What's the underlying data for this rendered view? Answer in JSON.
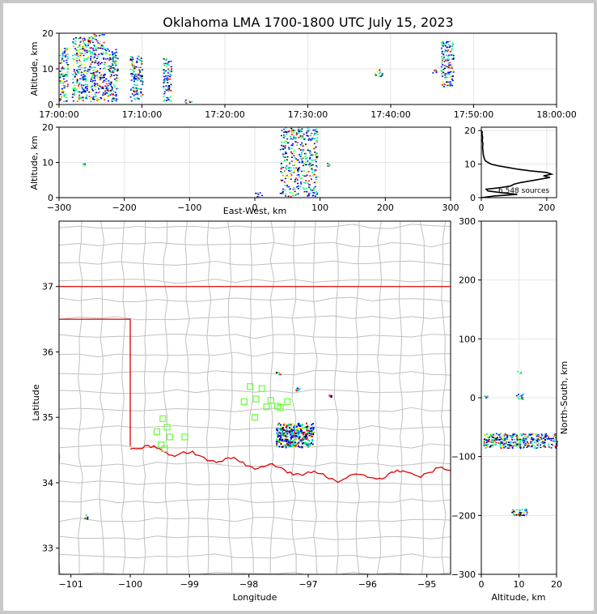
{
  "title": "Oklahoma LMA 1700-1800 UTC July 15, 2023",
  "colors": {
    "grid": "#e6e6e6",
    "county": "#c0c0c0",
    "state_border": "#e00000",
    "station": "#66ff33",
    "density": [
      "#0000ff",
      "#00cccc",
      "#00ff66",
      "#ffff00",
      "#ff0000",
      "#000000"
    ]
  },
  "chart_data": [
    {
      "id": "time_height",
      "type": "scatter",
      "xlabel": "",
      "ylabel": "Altitude, km",
      "xlim_minutes": [
        0,
        60
      ],
      "ylim": [
        0,
        20
      ],
      "x_tick_labels": [
        "17:00:00",
        "17:10:00",
        "17:20:00",
        "17:30:00",
        "17:40:00",
        "17:50:00",
        "18:00:00"
      ],
      "x_tick_values": [
        0,
        10,
        20,
        30,
        40,
        50,
        60
      ],
      "y_tick_values": [
        0,
        10,
        20
      ],
      "source_clusters": [
        {
          "t": [
            0,
            1
          ],
          "alt": [
            1,
            16
          ]
        },
        {
          "t": [
            1.5,
            3.5
          ],
          "alt": [
            1,
            19
          ]
        },
        {
          "t": [
            3.5,
            5.5
          ],
          "alt": [
            1,
            20
          ]
        },
        {
          "t": [
            5.5,
            7
          ],
          "alt": [
            1,
            16
          ]
        },
        {
          "t": [
            8.5,
            10
          ],
          "alt": [
            1,
            14
          ]
        },
        {
          "t": [
            12.5,
            13.5
          ],
          "alt": [
            1,
            13
          ]
        },
        {
          "t": [
            15,
            16
          ],
          "alt": [
            0.5,
            1.5
          ]
        },
        {
          "t": [
            38,
            39
          ],
          "alt": [
            8,
            10
          ]
        },
        {
          "t": [
            45,
            46
          ],
          "alt": [
            9,
            10
          ]
        },
        {
          "t": [
            46,
            47.5
          ],
          "alt": [
            5,
            18
          ]
        }
      ]
    },
    {
      "id": "ew_altitude",
      "type": "scatter",
      "xlabel": "East-West, km",
      "ylabel": "Altitude, km",
      "xlim": [
        -300,
        300
      ],
      "ylim": [
        0,
        20
      ],
      "x_tick_values": [
        -300,
        -200,
        -100,
        0,
        100,
        200,
        300
      ],
      "y_tick_values": [
        0,
        10,
        20
      ],
      "source_clusters": [
        {
          "x": [
            -265,
            -260
          ],
          "alt": [
            9,
            10
          ]
        },
        {
          "x": [
            0,
            10
          ],
          "alt": [
            0,
            2
          ]
        },
        {
          "x": [
            38,
            95
          ],
          "alt": [
            0.5,
            20
          ]
        },
        {
          "x": [
            110,
            120
          ],
          "alt": [
            9,
            10
          ]
        }
      ]
    },
    {
      "id": "altitude_histogram",
      "type": "line",
      "xlabel": "",
      "ylabel": "",
      "xlim": [
        0,
        230
      ],
      "ylim": [
        0,
        21
      ],
      "x_tick_values": [
        0,
        200
      ],
      "y_tick_values": [
        0,
        10,
        20
      ],
      "annotation": "6,548 sources",
      "counts": [
        [
          0,
          0
        ],
        [
          40,
          0.5
        ],
        [
          110,
          1
        ],
        [
          60,
          1.5
        ],
        [
          20,
          2
        ],
        [
          15,
          2.5
        ],
        [
          60,
          3
        ],
        [
          90,
          3.5
        ],
        [
          100,
          4
        ],
        [
          120,
          4.5
        ],
        [
          150,
          5
        ],
        [
          180,
          5.5
        ],
        [
          210,
          6
        ],
        [
          190,
          6.5
        ],
        [
          215,
          7
        ],
        [
          200,
          7.5
        ],
        [
          150,
          8
        ],
        [
          110,
          8.5
        ],
        [
          80,
          9
        ],
        [
          50,
          9.5
        ],
        [
          30,
          10
        ],
        [
          20,
          10.5
        ],
        [
          12,
          11
        ],
        [
          8,
          12
        ],
        [
          6,
          13
        ],
        [
          5,
          14
        ],
        [
          4,
          15
        ],
        [
          5,
          16
        ],
        [
          3,
          17
        ],
        [
          4,
          18
        ],
        [
          2,
          19
        ],
        [
          3,
          19.5
        ],
        [
          0,
          20
        ]
      ]
    },
    {
      "id": "plan_view_map",
      "type": "scatter",
      "xlabel": "Longitude",
      "ylabel": "Latitude",
      "right_ylabel": "North-South, km",
      "xlim": [
        -101.2,
        -94.6
      ],
      "ylim": [
        32.6,
        38.0
      ],
      "x_tick_values": [
        -101,
        -100,
        -99,
        -98,
        -97,
        -96,
        -95
      ],
      "y_tick_values": [
        33,
        34,
        35,
        36,
        37
      ],
      "ns_tick_values": [
        -300,
        -200,
        -100,
        0,
        100,
        200,
        300
      ],
      "stations": [
        {
          "lon": -99.55,
          "lat": 34.78
        },
        {
          "lon": -99.45,
          "lat": 34.98
        },
        {
          "lon": -99.38,
          "lat": 34.85
        },
        {
          "lon": -99.33,
          "lat": 34.7
        },
        {
          "lon": -99.48,
          "lat": 34.58
        },
        {
          "lon": -99.42,
          "lat": 34.52
        },
        {
          "lon": -99.08,
          "lat": 34.7
        },
        {
          "lon": -97.98,
          "lat": 35.47
        },
        {
          "lon": -97.88,
          "lat": 35.28
        },
        {
          "lon": -97.78,
          "lat": 35.44
        },
        {
          "lon": -97.7,
          "lat": 35.16
        },
        {
          "lon": -97.63,
          "lat": 35.26
        },
        {
          "lon": -97.35,
          "lat": 35.24
        },
        {
          "lon": -97.47,
          "lat": 35.15
        },
        {
          "lon": -98.08,
          "lat": 35.24
        },
        {
          "lon": -97.9,
          "lat": 35.0
        },
        {
          "lon": -97.52,
          "lat": 35.17
        }
      ],
      "source_clusters": [
        {
          "lon": [
            -97.55,
            -96.92
          ],
          "lat": [
            34.55,
            34.92
          ]
        },
        {
          "lon": [
            -97.55,
            -97.48
          ],
          "lat": [
            35.66,
            35.7
          ]
        },
        {
          "lon": [
            -96.7,
            -96.62
          ],
          "lat": [
            35.32,
            35.35
          ]
        },
        {
          "lon": [
            -97.25,
            -97.15
          ],
          "lat": [
            35.42,
            35.46
          ]
        },
        {
          "lon": [
            -100.77,
            -100.72
          ],
          "lat": [
            33.45,
            33.53
          ]
        }
      ]
    },
    {
      "id": "altitude_ns",
      "type": "scatter",
      "xlabel": "Altitude, km",
      "ylabel": "North-South, km",
      "xlim": [
        0,
        20
      ],
      "ylim": [
        -300,
        300
      ],
      "x_tick_values": [
        0,
        10,
        20
      ],
      "y_tick_values": [
        -300,
        -200,
        -100,
        0,
        100,
        200,
        300
      ],
      "source_clusters": [
        {
          "alt": [
            0.5,
            20
          ],
          "ns": [
            -85,
            -60
          ]
        },
        {
          "alt": [
            9,
            11
          ],
          "ns": [
            -2,
            8
          ]
        },
        {
          "alt": [
            9.5,
            10.5
          ],
          "ns": [
            40,
            46
          ]
        },
        {
          "alt": [
            0.5,
            1.5
          ],
          "ns": [
            0,
            4
          ]
        },
        {
          "alt": [
            8,
            12
          ],
          "ns": [
            -200,
            -188
          ]
        }
      ]
    }
  ]
}
